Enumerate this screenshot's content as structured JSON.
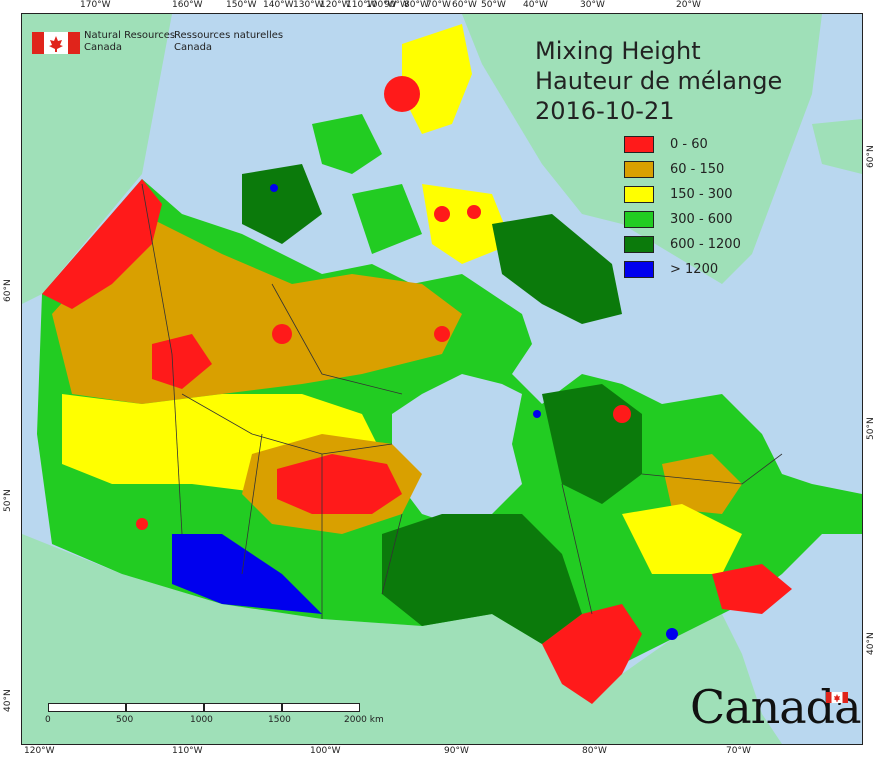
{
  "map": {
    "title_en": "Mixing Height",
    "title_fr": "Hauteur de mélange",
    "date": "2016-10-21",
    "agency_en_line1": "Natural Resources",
    "agency_en_line2": "Canada",
    "agency_fr_line1": "Ressources naturelles",
    "agency_fr_line2": "Canada",
    "wordmark": "Canada",
    "colors": {
      "ocean": "#b9d7ef",
      "land_other": "#9fe0b8",
      "c0": "#ff1a1a",
      "c1": "#d9a000",
      "c2": "#ffff00",
      "c3": "#22cc22",
      "c4": "#0b7a0b",
      "c5": "#0000ee"
    }
  },
  "legend": [
    {
      "label": "0 - 60",
      "color": "#ff1a1a"
    },
    {
      "label": "60 - 150",
      "color": "#d9a000"
    },
    {
      "label": "150 - 300",
      "color": "#ffff00"
    },
    {
      "label": "300 - 600",
      "color": "#22cc22"
    },
    {
      "label": "600 - 1200",
      "color": "#0b7a0b"
    },
    {
      "label": "> 1200",
      "color": "#0000ee"
    }
  ],
  "graticule": {
    "top": [
      "170°W",
      "160°W",
      "150°W",
      "140°W",
      "130°W",
      "120°W",
      "110°W",
      "100°W",
      "90°W",
      "80°W",
      "70°W",
      "60°W",
      "50°W",
      "40°W",
      "30°W",
      "20°W"
    ],
    "bottom": [
      "120°W",
      "110°W",
      "100°W",
      "90°W",
      "80°W",
      "70°W"
    ],
    "left": [
      "60°N",
      "50°N",
      "40°N"
    ],
    "right": [
      "60°N",
      "50°N",
      "40°N"
    ]
  },
  "scale": {
    "labels": [
      "0",
      "500",
      "1000",
      "1500",
      "2000 km"
    ]
  }
}
